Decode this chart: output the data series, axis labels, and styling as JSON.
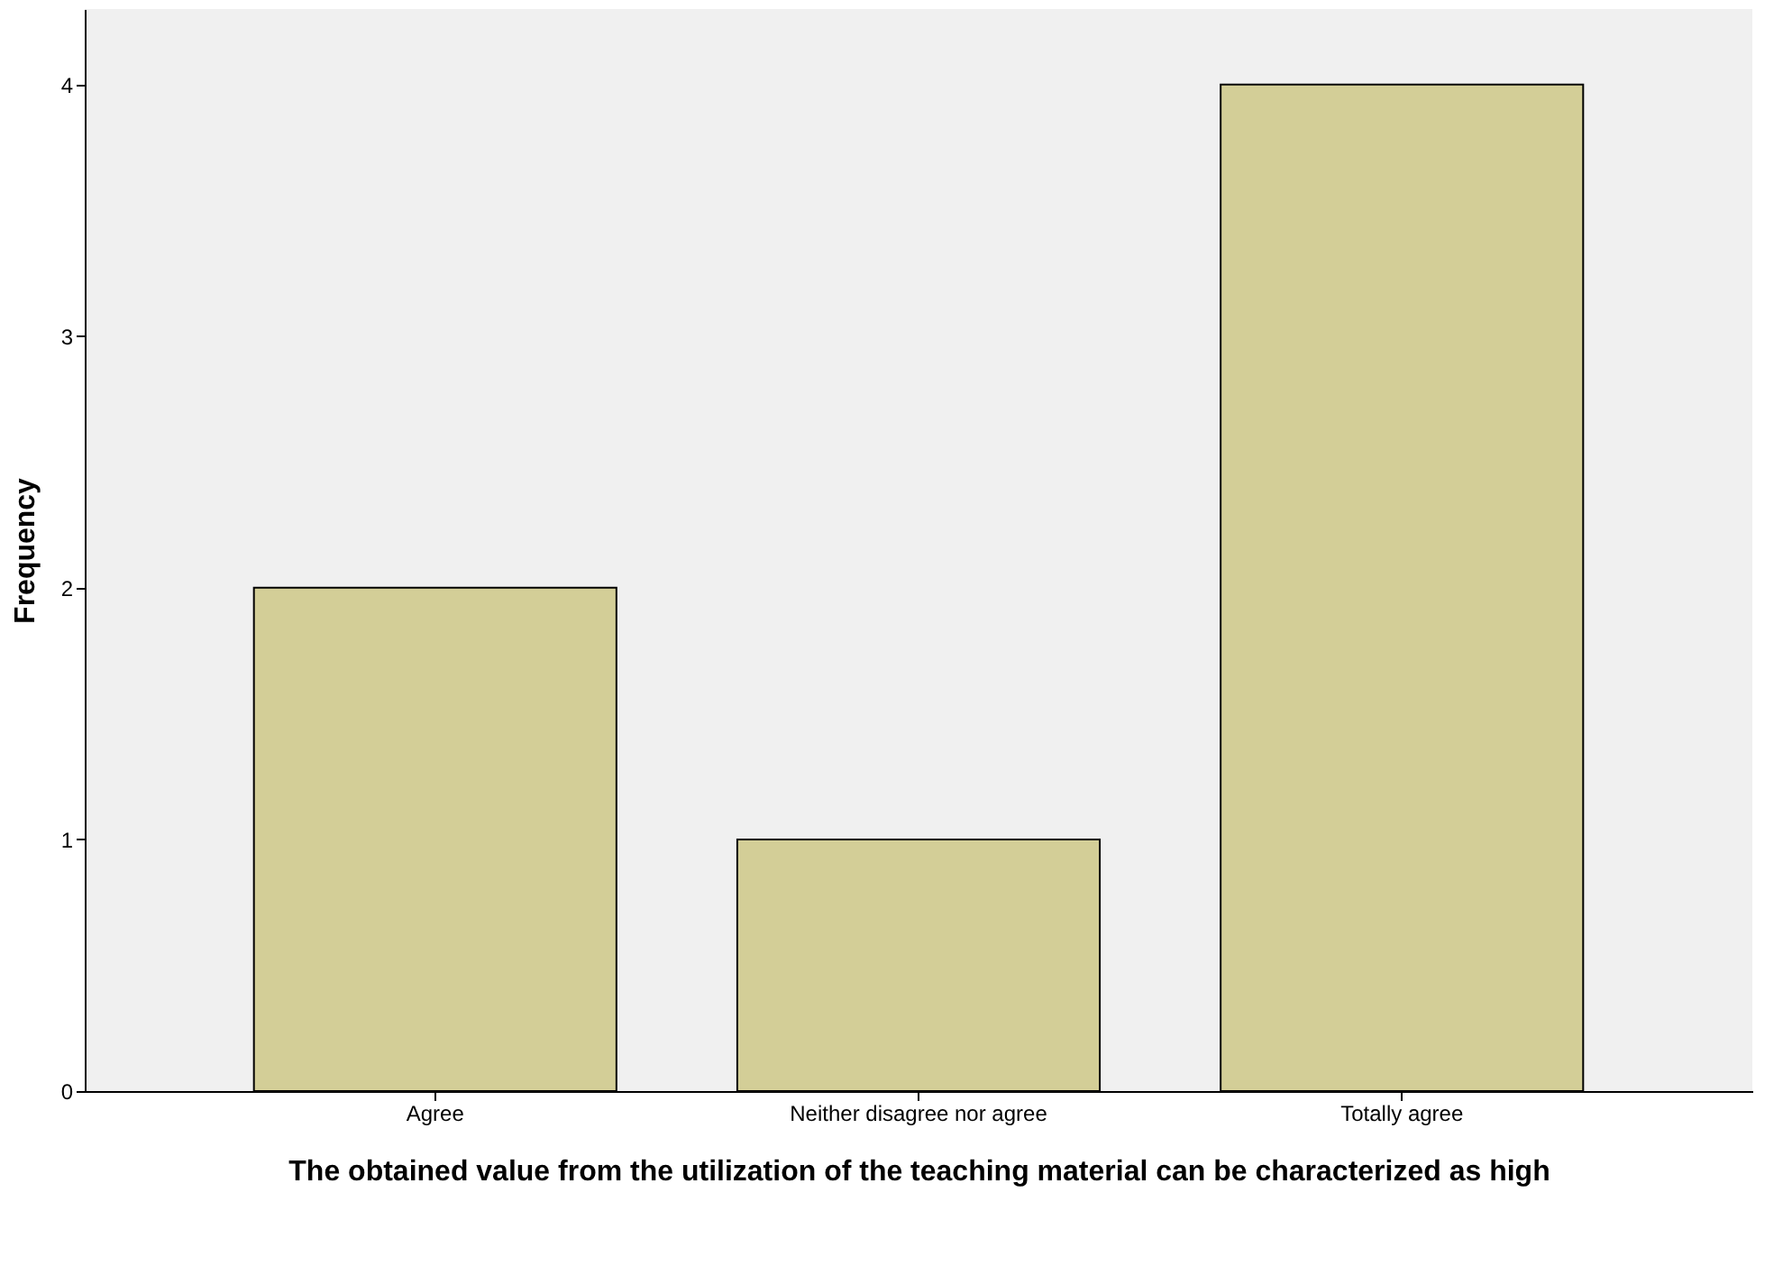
{
  "chart_data": {
    "type": "bar",
    "xlabel": "The obtained value from the utilization of the teaching material can be characterized as high",
    "ylabel": "Frequency",
    "categories": [
      "Agree",
      "Neither disagree nor agree",
      "Totally agree"
    ],
    "values": [
      2,
      1,
      4
    ],
    "color": "#d3ce97",
    "ylim": [
      0,
      4.3
    ],
    "yticks": [
      0,
      1,
      2,
      3,
      4
    ],
    "grid": false
  }
}
